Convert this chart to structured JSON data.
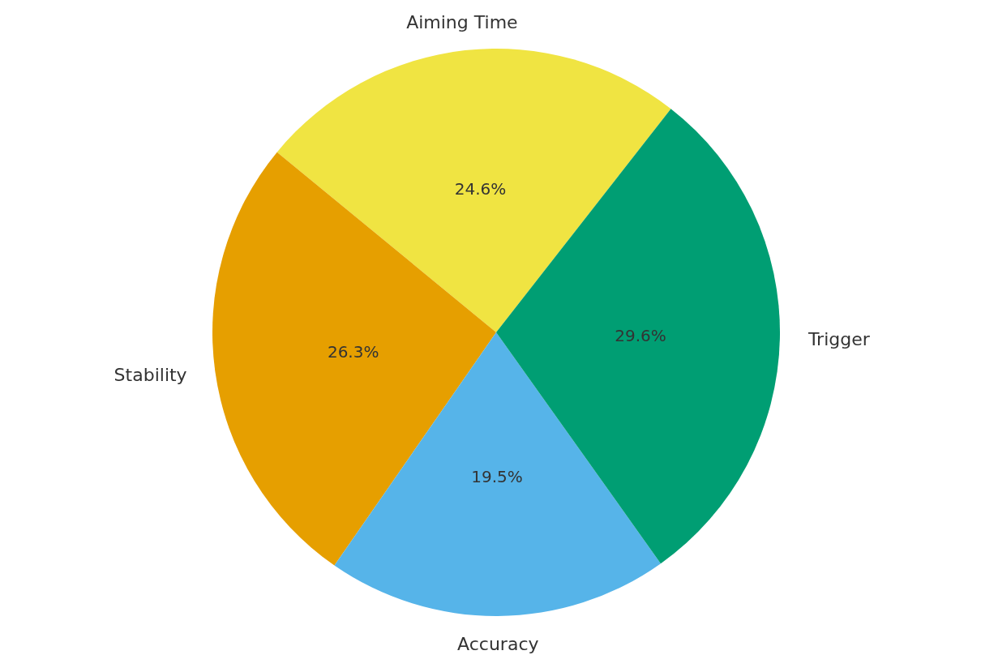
{
  "chart_data": {
    "type": "pie",
    "categories": [
      "Aiming Time",
      "Stability",
      "Accuracy",
      "Trigger"
    ],
    "values": [
      24.6,
      26.3,
      19.5,
      29.6
    ],
    "colors": [
      "#f0e442",
      "#e69f00",
      "#56b4e9",
      "#009e73"
    ],
    "value_labels": [
      "24.6%",
      "26.3%",
      "19.5%",
      "29.6%"
    ]
  }
}
